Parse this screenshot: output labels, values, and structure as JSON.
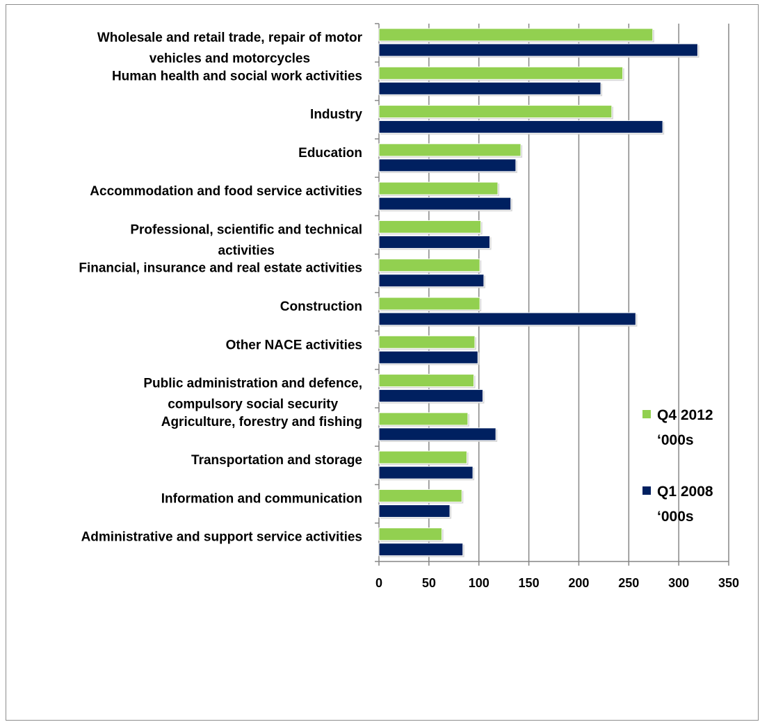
{
  "chart_data": {
    "type": "bar",
    "orientation": "horizontal",
    "title": "",
    "xlabel": "",
    "ylabel": "",
    "xlim": [
      0,
      350
    ],
    "x_ticks": [
      "0",
      "50",
      "100",
      "150",
      "200",
      "250",
      "300",
      "350"
    ],
    "grid": "vertical major gridlines",
    "legend_position": "right",
    "categories": [
      [
        "Wholesale and retail trade, repair of motor",
        "vehicles and motorcycles"
      ],
      [
        "Human health and social work activities"
      ],
      [
        "Industry"
      ],
      [
        "Education"
      ],
      [
        "Accommodation and food service activities"
      ],
      [
        "Professional, scientific and technical",
        "activities"
      ],
      [
        "Financial, insurance and real estate activities"
      ],
      [
        "Construction"
      ],
      [
        "Other NACE activities"
      ],
      [
        "Public administration and defence,",
        "compulsory social security"
      ],
      [
        "Agriculture, forestry and fishing"
      ],
      [
        "Transportation and storage"
      ],
      [
        "Information and communication"
      ],
      [
        "Administrative and support service activities"
      ]
    ],
    "series": [
      {
        "name": "Q4 2012 ‘000s",
        "legend_lines": [
          "Q4 2012",
          "‘000s"
        ],
        "color": "#92d050",
        "values": [
          274,
          244,
          233,
          142,
          119,
          102,
          101,
          101,
          96,
          95,
          89,
          88,
          83,
          63
        ]
      },
      {
        "name": "Q1 2008 ‘000s",
        "legend_lines": [
          "Q1 2008",
          "‘000s"
        ],
        "color": "#002060",
        "values": [
          319,
          222,
          284,
          137,
          132,
          111,
          105,
          257,
          99,
          104,
          117,
          94,
          71,
          84
        ]
      }
    ]
  }
}
